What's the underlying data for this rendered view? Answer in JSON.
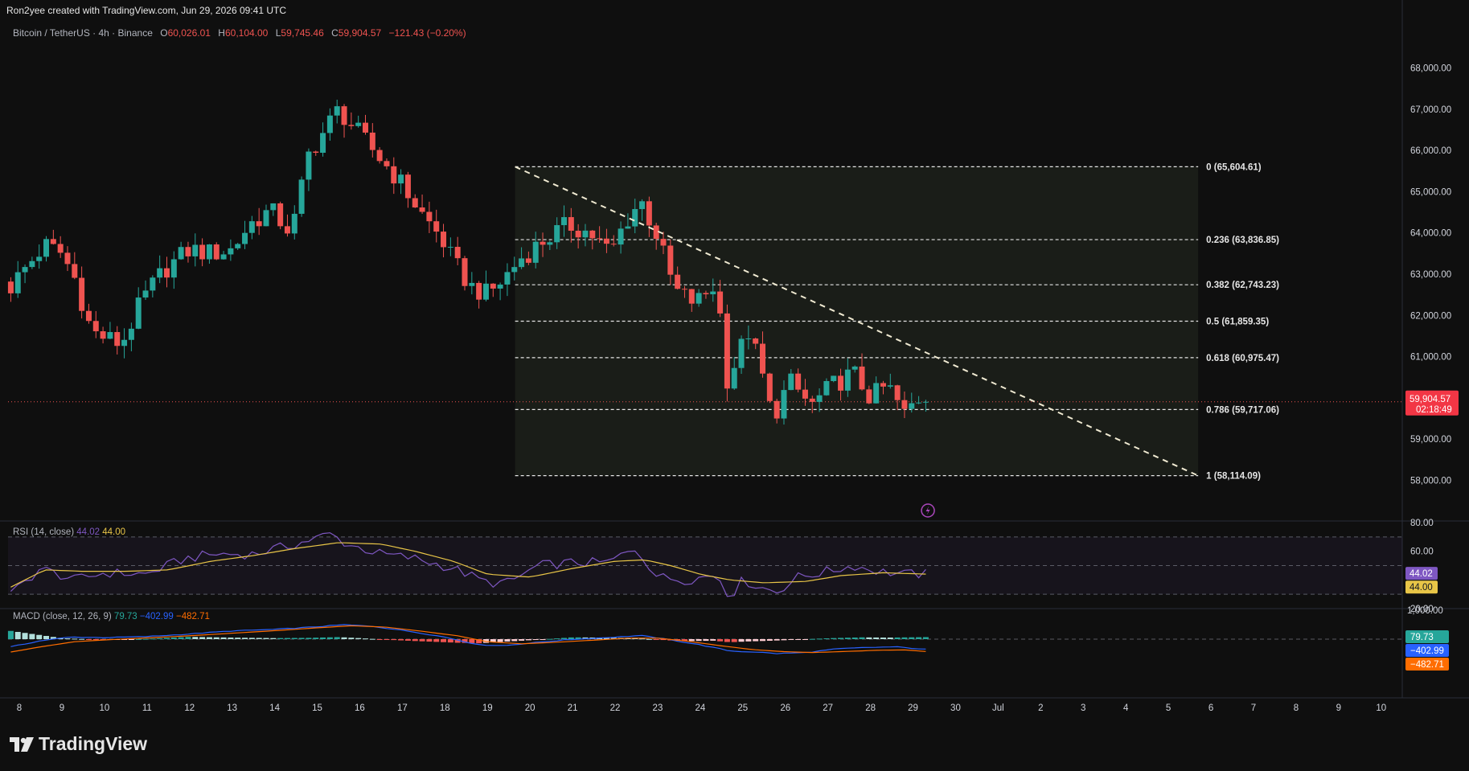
{
  "header": {
    "created_by": "Ron2yee created with TradingView.com, Jun 29, 2026 09:41 UTC"
  },
  "legend": {
    "symbol": "Bitcoin / TetherUS · 4h · Binance",
    "open_label": "O",
    "open": "60,026.01",
    "high_label": "H",
    "high": "60,104.00",
    "low_label": "L",
    "low": "59,745.46",
    "close_label": "C",
    "close": "59,904.57",
    "change": "−121.43 (−0.20%)"
  },
  "rsi_legend": {
    "label": "RSI (14, close)",
    "rsi": "44.02",
    "ma": "44.00"
  },
  "macd_legend": {
    "label": "MACD (close, 12, 26, 9)",
    "hist": "79.73",
    "macd": "−402.99",
    "signal": "−482.71"
  },
  "brand": {
    "name": "TradingView"
  },
  "colors": {
    "background": "#0f0f0f",
    "up": "#26a69a",
    "down": "#ef5350",
    "rsi_line": "#7e57c2",
    "rsi_ma": "#e8c547",
    "macd_line": "#2962ff",
    "signal_line": "#ff6d00",
    "fib_zone": "#1c1f1a",
    "trendline": "#f0ead2"
  },
  "chart_data": [
    {
      "type": "candlestick",
      "title": "Bitcoin / TetherUS · 4h · Binance",
      "x_ticks": [
        "8",
        "9",
        "10",
        "11",
        "12",
        "13",
        "14",
        "15",
        "16",
        "17",
        "18",
        "19",
        "20",
        "21",
        "22",
        "23",
        "24",
        "25",
        "26",
        "27",
        "28",
        "29",
        "30",
        "Jul",
        "2",
        "3",
        "4",
        "5",
        "6",
        "7",
        "8",
        "9",
        "10"
      ],
      "y_ticks": [
        "68,000.00",
        "67,000.00",
        "66,000.00",
        "65,000.00",
        "64,000.00",
        "63,000.00",
        "62,000.00",
        "61,000.00",
        "59,000.00",
        "58,000.00"
      ],
      "ylim": [
        57600,
        68400
      ],
      "last_price": {
        "value": 59904.57,
        "label": "59,904.57",
        "countdown": "02:18:49"
      },
      "fibonacci": {
        "start_day": 19.65,
        "end_day": 35.7,
        "levels": [
          {
            "ratio": "0",
            "price": 65604.61,
            "label": "0 (65,604.61)"
          },
          {
            "ratio": "0.236",
            "price": 63836.85,
            "label": "0.236 (63,836.85)"
          },
          {
            "ratio": "0.382",
            "price": 62743.23,
            "label": "0.382 (62,743.23)"
          },
          {
            "ratio": "0.5",
            "price": 61859.35,
            "label": "0.5 (61,859.35)"
          },
          {
            "ratio": "0.618",
            "price": 60975.47,
            "label": "0.618 (60,975.47)"
          },
          {
            "ratio": "0.786",
            "price": 59717.06,
            "label": "0.786 (59,717.06)"
          },
          {
            "ratio": "1",
            "price": 58114.09,
            "label": "1 (58,114.09)"
          }
        ]
      },
      "trendline": {
        "from": {
          "day": 19.65,
          "price": 65604.61
        },
        "to": {
          "day": 35.7,
          "price": 58114.09
        }
      },
      "anchors": [
        {
          "day": 7.8,
          "price": 62700
        },
        {
          "day": 8.1,
          "price": 63100
        },
        {
          "day": 8.6,
          "price": 63700
        },
        {
          "day": 9.0,
          "price": 63500
        },
        {
          "day": 9.3,
          "price": 62900
        },
        {
          "day": 9.7,
          "price": 61600
        },
        {
          "day": 10.4,
          "price": 61300
        },
        {
          "day": 10.9,
          "price": 62400
        },
        {
          "day": 11.4,
          "price": 63100
        },
        {
          "day": 12.0,
          "price": 63600
        },
        {
          "day": 12.5,
          "price": 63500
        },
        {
          "day": 13.0,
          "price": 63600
        },
        {
          "day": 13.4,
          "price": 64200
        },
        {
          "day": 13.9,
          "price": 64550
        },
        {
          "day": 14.4,
          "price": 64000
        },
        {
          "day": 14.8,
          "price": 65900
        },
        {
          "day": 15.5,
          "price": 67000
        },
        {
          "day": 15.9,
          "price": 66500
        },
        {
          "day": 16.4,
          "price": 65900
        },
        {
          "day": 16.9,
          "price": 65300
        },
        {
          "day": 17.5,
          "price": 64400
        },
        {
          "day": 17.9,
          "price": 63900
        },
        {
          "day": 18.2,
          "price": 63300
        },
        {
          "day": 18.6,
          "price": 62700
        },
        {
          "day": 19.0,
          "price": 62500
        },
        {
          "day": 19.3,
          "price": 62800
        },
        {
          "day": 19.8,
          "price": 63400
        },
        {
          "day": 20.3,
          "price": 63800
        },
        {
          "day": 20.9,
          "price": 64200
        },
        {
          "day": 21.4,
          "price": 64000
        },
        {
          "day": 21.9,
          "price": 63500
        },
        {
          "day": 22.2,
          "price": 64200
        },
        {
          "day": 22.6,
          "price": 64800
        },
        {
          "day": 23.0,
          "price": 63900
        },
        {
          "day": 23.4,
          "price": 62600
        },
        {
          "day": 23.9,
          "price": 62300
        },
        {
          "day": 24.4,
          "price": 62800
        },
        {
          "day": 24.6,
          "price": 60400
        },
        {
          "day": 24.9,
          "price": 61000
        },
        {
          "day": 25.1,
          "price": 61700
        },
        {
          "day": 25.4,
          "price": 60800
        },
        {
          "day": 25.7,
          "price": 59500
        },
        {
          "day": 26.1,
          "price": 60400
        },
        {
          "day": 26.6,
          "price": 59800
        },
        {
          "day": 27.1,
          "price": 60300
        },
        {
          "day": 27.6,
          "price": 60600
        },
        {
          "day": 28.0,
          "price": 60000
        },
        {
          "day": 28.4,
          "price": 60300
        },
        {
          "day": 28.8,
          "price": 59600
        },
        {
          "day": 29.1,
          "price": 60000
        },
        {
          "day": 29.35,
          "price": 59904.57
        }
      ]
    },
    {
      "type": "line",
      "title": "RSI (14, close)",
      "y_ticks": [
        "80.00",
        "60.00",
        "20.00"
      ],
      "bands": [
        70,
        50,
        30
      ],
      "ylim": [
        20,
        80
      ],
      "series": [
        {
          "name": "RSI",
          "anchors": [
            [
              7.8,
              30
            ],
            [
              8.5,
              48
            ],
            [
              9.3,
              40
            ],
            [
              10.0,
              45
            ],
            [
              11.0,
              44
            ],
            [
              11.9,
              55
            ],
            [
              12.6,
              58
            ],
            [
              13.5,
              58
            ],
            [
              14.5,
              65
            ],
            [
              15.3,
              72
            ],
            [
              15.7,
              65
            ],
            [
              16.5,
              58
            ],
            [
              17.3,
              55
            ],
            [
              18.2,
              48
            ],
            [
              19.0,
              38
            ],
            [
              19.5,
              38
            ],
            [
              20.2,
              50
            ],
            [
              21.0,
              52
            ],
            [
              21.8,
              52
            ],
            [
              22.5,
              62
            ],
            [
              23.0,
              42
            ],
            [
              23.7,
              40
            ],
            [
              24.4,
              44
            ],
            [
              24.7,
              28
            ],
            [
              25.0,
              40
            ],
            [
              25.4,
              35
            ],
            [
              25.8,
              32
            ],
            [
              26.3,
              42
            ],
            [
              27.0,
              46
            ],
            [
              27.6,
              50
            ],
            [
              28.2,
              46
            ],
            [
              28.8,
              44
            ],
            [
              29.35,
              44.02
            ]
          ]
        },
        {
          "name": "RSI-based MA",
          "anchors": [
            [
              7.8,
              35
            ],
            [
              8.6,
              47
            ],
            [
              9.5,
              46
            ],
            [
              10.5,
              46
            ],
            [
              11.5,
              47
            ],
            [
              12.5,
              53
            ],
            [
              13.5,
              57
            ],
            [
              14.5,
              62
            ],
            [
              15.5,
              66
            ],
            [
              16.5,
              65
            ],
            [
              17.3,
              60
            ],
            [
              18.2,
              53
            ],
            [
              19.0,
              44
            ],
            [
              20.0,
              42
            ],
            [
              21.0,
              48
            ],
            [
              22.0,
              53
            ],
            [
              22.7,
              54
            ],
            [
              23.3,
              50
            ],
            [
              24.0,
              44
            ],
            [
              24.7,
              40
            ],
            [
              25.5,
              38
            ],
            [
              26.5,
              39
            ],
            [
              27.3,
              43
            ],
            [
              28.3,
              45
            ],
            [
              29.35,
              44.0
            ]
          ]
        }
      ]
    },
    {
      "type": "bar",
      "title": "MACD (close, 12, 26, 9)",
      "y_ticks": [
        "1,000.00"
      ],
      "ylim": [
        -1250,
        1250
      ],
      "series": [
        {
          "name": "Histogram",
          "anchors": [
            [
              7.8,
              320
            ],
            [
              8.4,
              180
            ],
            [
              9.0,
              40
            ],
            [
              10.0,
              -30
            ],
            [
              11.0,
              10
            ],
            [
              12.0,
              90
            ],
            [
              13.0,
              60
            ],
            [
              14.0,
              40
            ],
            [
              14.8,
              50
            ],
            [
              15.5,
              80
            ],
            [
              16.0,
              40
            ],
            [
              16.6,
              -20
            ],
            [
              17.4,
              -80
            ],
            [
              18.3,
              -140
            ],
            [
              18.8,
              -160
            ],
            [
              19.5,
              -90
            ],
            [
              20.2,
              -20
            ],
            [
              21.0,
              70
            ],
            [
              21.8,
              60
            ],
            [
              22.5,
              40
            ],
            [
              23.0,
              -20
            ],
            [
              23.6,
              -80
            ],
            [
              24.3,
              -60
            ],
            [
              24.7,
              -120
            ],
            [
              25.1,
              -90
            ],
            [
              25.5,
              -70
            ],
            [
              26.0,
              -40
            ],
            [
              26.5,
              0
            ],
            [
              27.1,
              40
            ],
            [
              27.8,
              70
            ],
            [
              28.4,
              60
            ],
            [
              29.35,
              79.73
            ]
          ]
        },
        {
          "name": "MACD",
          "anchors": [
            [
              7.8,
              -300
            ],
            [
              8.5,
              -60
            ],
            [
              9.2,
              80
            ],
            [
              10.0,
              60
            ],
            [
              11.0,
              100
            ],
            [
              12.0,
              200
            ],
            [
              13.0,
              320
            ],
            [
              14.0,
              380
            ],
            [
              15.0,
              480
            ],
            [
              15.6,
              560
            ],
            [
              16.3,
              500
            ],
            [
              17.2,
              300
            ],
            [
              18.0,
              80
            ],
            [
              18.8,
              -220
            ],
            [
              19.4,
              -250
            ],
            [
              20.2,
              -120
            ],
            [
              21.0,
              -10
            ],
            [
              21.8,
              60
            ],
            [
              22.6,
              140
            ],
            [
              23.2,
              0
            ],
            [
              24.0,
              -220
            ],
            [
              24.7,
              -460
            ],
            [
              25.3,
              -500
            ],
            [
              25.8,
              -560
            ],
            [
              26.5,
              -520
            ],
            [
              27.2,
              -380
            ],
            [
              28.0,
              -320
            ],
            [
              28.6,
              -300
            ],
            [
              29.35,
              -402.99
            ]
          ]
        },
        {
          "name": "Signal",
          "anchors": [
            [
              7.8,
              -500
            ],
            [
              8.5,
              -300
            ],
            [
              9.3,
              -100
            ],
            [
              10.0,
              -30
            ],
            [
              11.0,
              50
            ],
            [
              12.0,
              130
            ],
            [
              13.0,
              230
            ],
            [
              14.0,
              330
            ],
            [
              15.0,
              440
            ],
            [
              15.8,
              520
            ],
            [
              16.6,
              470
            ],
            [
              17.4,
              320
            ],
            [
              18.3,
              130
            ],
            [
              19.0,
              -100
            ],
            [
              19.8,
              -180
            ],
            [
              20.6,
              -120
            ],
            [
              21.5,
              -40
            ],
            [
              22.3,
              40
            ],
            [
              23.0,
              40
            ],
            [
              23.7,
              -80
            ],
            [
              24.5,
              -260
            ],
            [
              25.2,
              -400
            ],
            [
              25.9,
              -480
            ],
            [
              26.6,
              -520
            ],
            [
              27.4,
              -480
            ],
            [
              28.2,
              -430
            ],
            [
              28.8,
              -420
            ],
            [
              29.35,
              -482.71
            ]
          ]
        }
      ]
    }
  ]
}
